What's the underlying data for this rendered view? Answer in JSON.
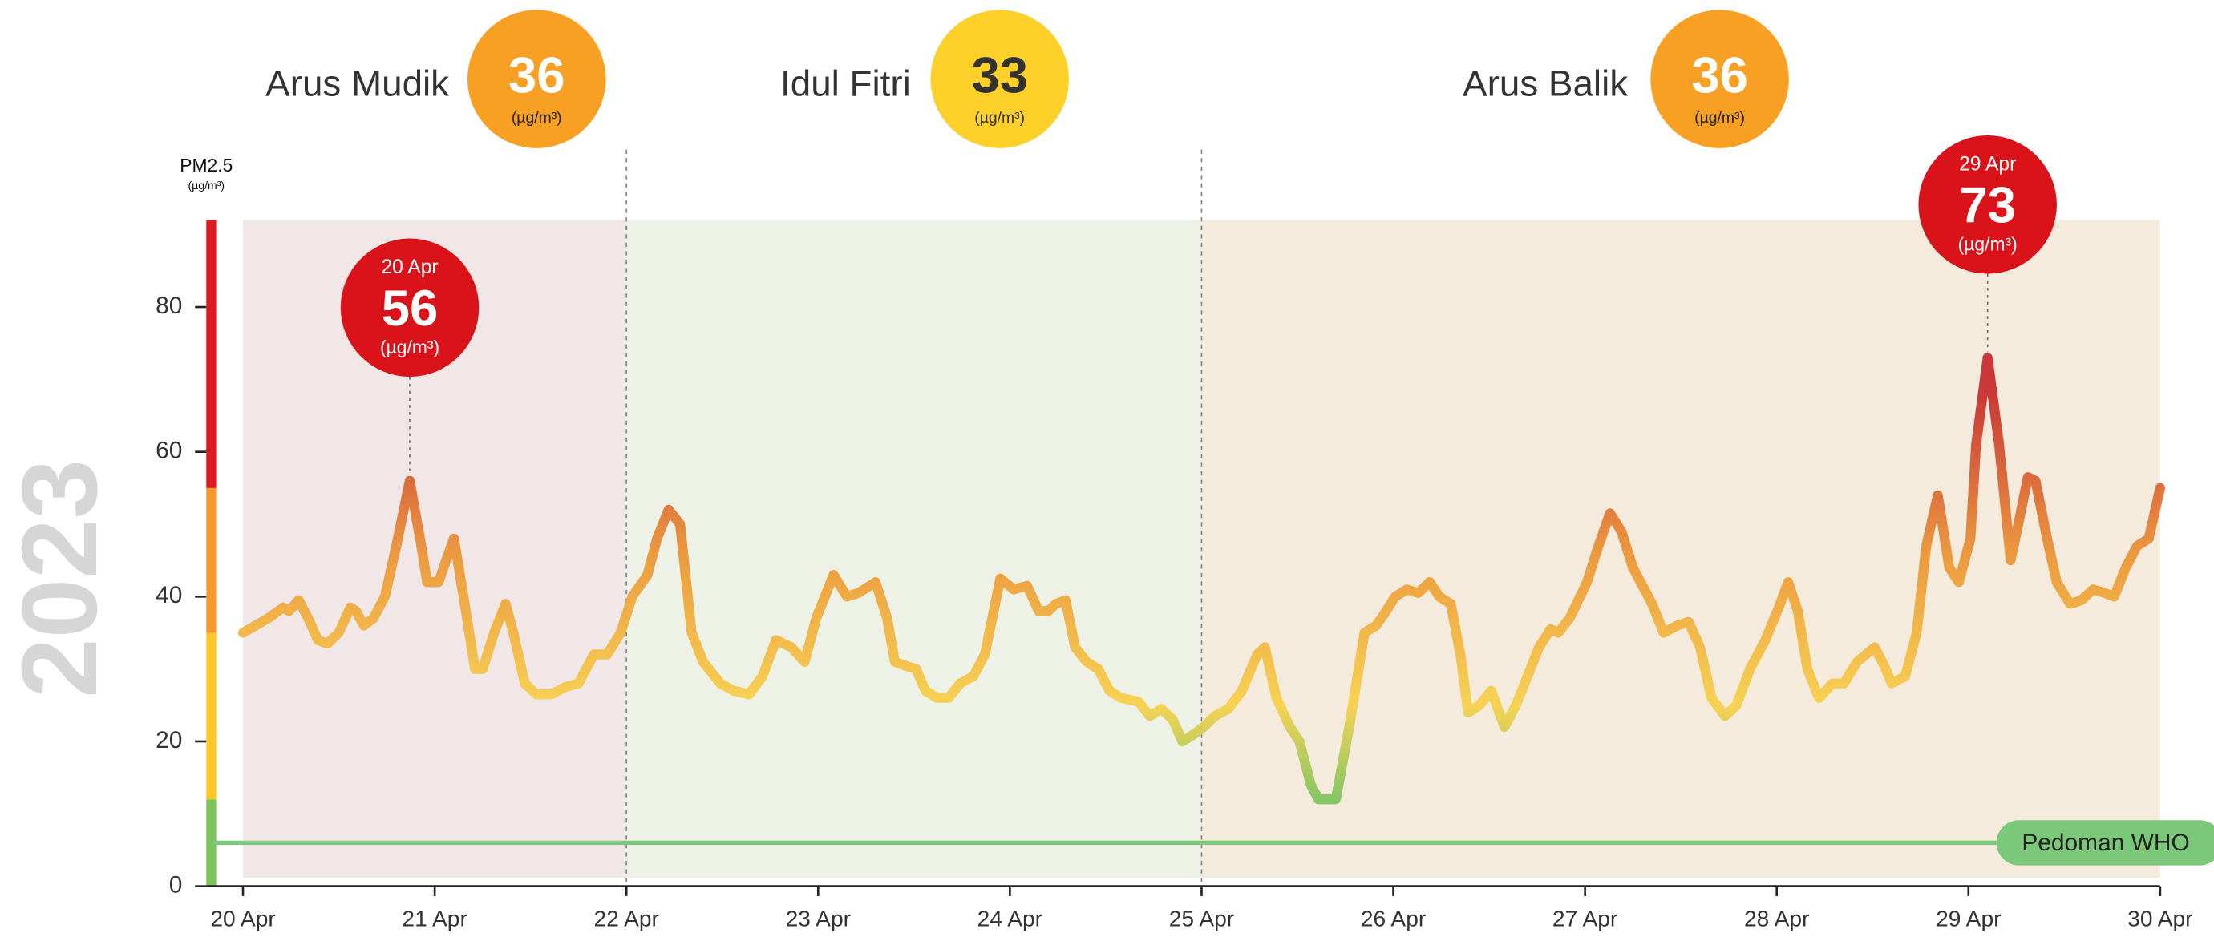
{
  "chart_data": {
    "type": "line",
    "year": "2023",
    "y_label": "PM2.5",
    "unit": "(µg/m³)",
    "xlim": [
      20,
      30
    ],
    "ylim": [
      0,
      92
    ],
    "xticks": [
      {
        "value": 20,
        "label": "20 Apr"
      },
      {
        "value": 21,
        "label": "21 Apr"
      },
      {
        "value": 22,
        "label": "22 Apr"
      },
      {
        "value": 23,
        "label": "23 Apr"
      },
      {
        "value": 24,
        "label": "24 Apr"
      },
      {
        "value": 25,
        "label": "25 Apr"
      },
      {
        "value": 26,
        "label": "26 Apr"
      },
      {
        "value": 27,
        "label": "27 Apr"
      },
      {
        "value": 28,
        "label": "28 Apr"
      },
      {
        "value": 29,
        "label": "29 Apr"
      },
      {
        "value": 30,
        "label": "30 Apr"
      }
    ],
    "yticks": [
      0,
      20,
      40,
      60,
      80
    ],
    "bands": [
      {
        "from": 0,
        "to": 12,
        "color": "#7cc35a"
      },
      {
        "from": 12,
        "to": 35,
        "color": "#fcc82a"
      },
      {
        "from": 35,
        "to": 55,
        "color": "#f59a2c"
      },
      {
        "from": 55,
        "to": 92,
        "color": "#dc1a1f"
      }
    ],
    "line_colors": [
      {
        "value": 12,
        "color": "#7cc35a"
      },
      {
        "value": 25,
        "color": "#f7d048"
      },
      {
        "value": 45,
        "color": "#ec9632"
      },
      {
        "value": 68,
        "color": "#c6282a"
      }
    ],
    "phases": [
      {
        "name": "Arus Mudik",
        "value": 36,
        "start": 20,
        "end": 22,
        "color": "#f1e7e7",
        "badge_color": "#f7a024"
      },
      {
        "name": "Idul Fitri",
        "value": 33,
        "start": 22,
        "end": 25,
        "color": "#eef1e5",
        "badge_color": "#fdd02a"
      },
      {
        "name": "Arus Balik",
        "value": 36,
        "start": 25,
        "end": 30,
        "color": "#f4ebdd",
        "badge_color": "#f7a024"
      }
    ],
    "reference": {
      "name": "Pedoman WHO",
      "value": 6,
      "color": "#7cc87a"
    },
    "annotations": [
      {
        "label": "20 Apr",
        "value": 56,
        "x": 20.87
      },
      {
        "label": "29 Apr",
        "value": 73,
        "x": 29.1
      }
    ],
    "series": [
      {
        "name": "PM2.5",
        "x": [
          20.0,
          20.13,
          20.21,
          20.24,
          20.29,
          20.34,
          20.39,
          20.44,
          20.5,
          20.56,
          20.59,
          20.63,
          20.68,
          20.74,
          20.8,
          20.87,
          20.93,
          20.96,
          21.02,
          21.06,
          21.1,
          21.15,
          21.21,
          21.25,
          21.31,
          21.37,
          21.41,
          21.47,
          21.53,
          21.61,
          21.68,
          21.75,
          21.83,
          21.9,
          21.97,
          22.03,
          22.11,
          22.16,
          22.22,
          22.28,
          22.34,
          22.4,
          22.49,
          22.56,
          22.64,
          22.71,
          22.78,
          22.86,
          22.93,
          22.99,
          23.08,
          23.15,
          23.21,
          23.3,
          23.36,
          23.4,
          23.45,
          23.51,
          23.56,
          23.62,
          23.68,
          23.74,
          23.81,
          23.87,
          23.95,
          24.02,
          24.09,
          24.15,
          24.2,
          24.24,
          24.29,
          24.34,
          24.4,
          24.46,
          24.52,
          24.58,
          24.67,
          24.73,
          24.79,
          24.85,
          24.9,
          24.96,
          25.01,
          25.07,
          25.14,
          25.21,
          25.29,
          25.33,
          25.39,
          25.46,
          25.51,
          25.57,
          25.61,
          25.7,
          25.77,
          25.85,
          25.91,
          25.95,
          26.01,
          26.07,
          26.13,
          26.19,
          26.24,
          26.3,
          26.35,
          26.39,
          26.45,
          26.51,
          26.58,
          26.64,
          26.7,
          26.76,
          26.82,
          26.86,
          26.92,
          27.01,
          27.07,
          27.13,
          27.19,
          27.25,
          27.31,
          27.35,
          27.41,
          27.48,
          27.54,
          27.6,
          27.66,
          27.73,
          27.79,
          27.86,
          27.94,
          28.01,
          28.06,
          28.11,
          28.16,
          28.22,
          28.29,
          28.35,
          28.42,
          28.51,
          28.56,
          28.6,
          28.67,
          28.73,
          28.78,
          28.84,
          28.9,
          28.95,
          29.01,
          29.04,
          29.1,
          29.16,
          29.22,
          29.26,
          29.31,
          29.35,
          29.41,
          29.46,
          29.53,
          29.59,
          29.65,
          29.71,
          29.76,
          29.82,
          29.88,
          29.94,
          30.0
        ],
        "values": [
          35,
          37,
          38.5,
          38,
          39.5,
          37,
          34,
          33.5,
          35,
          38.5,
          38,
          36,
          37,
          40,
          47,
          56,
          47,
          42,
          42,
          45,
          48,
          40,
          30,
          30,
          35,
          39,
          35,
          28,
          26.5,
          26.5,
          27.5,
          28,
          32,
          32,
          35,
          40,
          43,
          48,
          52,
          50,
          35,
          31,
          28,
          27,
          26.5,
          29,
          34,
          33,
          31,
          37,
          43,
          40,
          40.5,
          42,
          37,
          31,
          30.5,
          30,
          27,
          26,
          26,
          28,
          29,
          32,
          42.5,
          41,
          41.5,
          38,
          38,
          39,
          39.5,
          33,
          31,
          30,
          27,
          26,
          25.5,
          23.5,
          24.5,
          23,
          20,
          21,
          22,
          23.5,
          24.5,
          27,
          32,
          33,
          26,
          22,
          20,
          14,
          12,
          12,
          22,
          35,
          36,
          37.5,
          40,
          41,
          40.5,
          42,
          40,
          39,
          32,
          24,
          25,
          27,
          22,
          25,
          29,
          33,
          35.5,
          35,
          37,
          42,
          47,
          51.5,
          49,
          44,
          41,
          39,
          35,
          36,
          36.5,
          33,
          26,
          23.5,
          25,
          30,
          34,
          38.5,
          42,
          38,
          30,
          26,
          28,
          28,
          31,
          33,
          30.5,
          28,
          29,
          35,
          47,
          54,
          44,
          42,
          48,
          61,
          73,
          61,
          45,
          50,
          56.5,
          56,
          48,
          42,
          39,
          39.5,
          41,
          40.5,
          40,
          44,
          47,
          48,
          55
        ]
      }
    ]
  }
}
